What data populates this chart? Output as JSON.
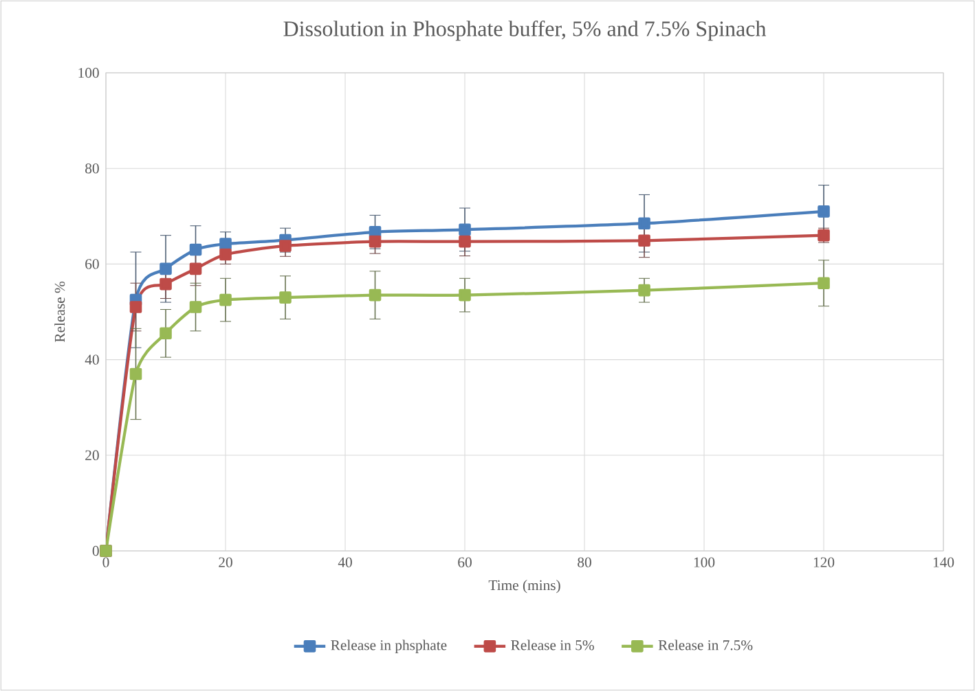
{
  "chart_data": {
    "type": "line",
    "title": "Dissolution in Phosphate buffer, 5% and 7.5% Spinach",
    "xlabel": "Time (mins)",
    "ylabel": "Release %",
    "x": [
      0,
      5,
      10,
      15,
      20,
      30,
      45,
      60,
      90,
      120
    ],
    "series": [
      {
        "name": "Release in phsphate",
        "color": "#4a7ebb",
        "values": [
          0,
          52.5,
          59,
          63,
          64.2,
          65,
          66.7,
          67.2,
          68.5,
          71
        ],
        "errors": [
          null,
          10,
          7,
          5,
          2.5,
          2.5,
          3.5,
          4.5,
          6,
          5.5
        ]
      },
      {
        "name": "Release in 5%",
        "color": "#be4b48",
        "values": [
          0,
          51,
          55.8,
          59,
          62,
          63.8,
          64.7,
          64.7,
          64.9,
          66
        ],
        "errors": [
          null,
          5,
          3,
          3.5,
          2,
          2.2,
          2.5,
          3,
          3.5,
          1.5
        ]
      },
      {
        "name": "Release in 7.5%",
        "color": "#98b954",
        "values": [
          0,
          37,
          45.5,
          51,
          52.5,
          53,
          53.5,
          53.5,
          54.5,
          56
        ],
        "errors": [
          null,
          9.5,
          5,
          5,
          4.5,
          4.5,
          5,
          3.5,
          2.5,
          4.8
        ]
      }
    ],
    "xlim": [
      0,
      140
    ],
    "xticks": [
      0,
      20,
      40,
      60,
      80,
      100,
      120,
      140
    ],
    "ylim": [
      0,
      100
    ],
    "yticks": [
      0,
      20,
      40,
      60,
      80,
      100
    ],
    "grid": true,
    "legend": "bottom",
    "marker": "square",
    "line_style": "solid"
  }
}
